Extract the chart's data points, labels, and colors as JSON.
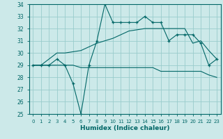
{
  "xlabel": "Humidex (Indice chaleur)",
  "x": [
    0,
    1,
    2,
    3,
    4,
    5,
    6,
    7,
    8,
    9,
    10,
    11,
    12,
    13,
    14,
    15,
    16,
    17,
    18,
    19,
    20,
    21,
    22,
    23
  ],
  "main_line": [
    29,
    29,
    29,
    29.5,
    29,
    27.5,
    25,
    29,
    31,
    34,
    32.5,
    32.5,
    32.5,
    32.5,
    33,
    32.5,
    32.5,
    31,
    31.5,
    31.5,
    31.5,
    30.8,
    29,
    29.5
  ],
  "upper_line": [
    29,
    29,
    29.5,
    30,
    30,
    30.1,
    30.2,
    30.5,
    30.8,
    31,
    31.2,
    31.5,
    31.8,
    31.9,
    32,
    32,
    32,
    32,
    32,
    32,
    30.8,
    31,
    30.2,
    29.5
  ],
  "lower_line": [
    29,
    29,
    29,
    29,
    29,
    29,
    28.8,
    28.8,
    28.8,
    28.8,
    28.8,
    28.8,
    28.8,
    28.8,
    28.8,
    28.8,
    28.5,
    28.5,
    28.5,
    28.5,
    28.5,
    28.5,
    28.2,
    28
  ],
  "bg_color": "#cce9e9",
  "grid_color": "#99cccc",
  "line_color": "#006666",
  "ylim": [
    25,
    34
  ],
  "yticks": [
    25,
    26,
    27,
    28,
    29,
    30,
    31,
    32,
    33,
    34
  ],
  "xticks": [
    0,
    1,
    2,
    3,
    4,
    5,
    6,
    7,
    8,
    9,
    10,
    11,
    12,
    13,
    14,
    15,
    16,
    17,
    18,
    19,
    20,
    21,
    22,
    23
  ]
}
